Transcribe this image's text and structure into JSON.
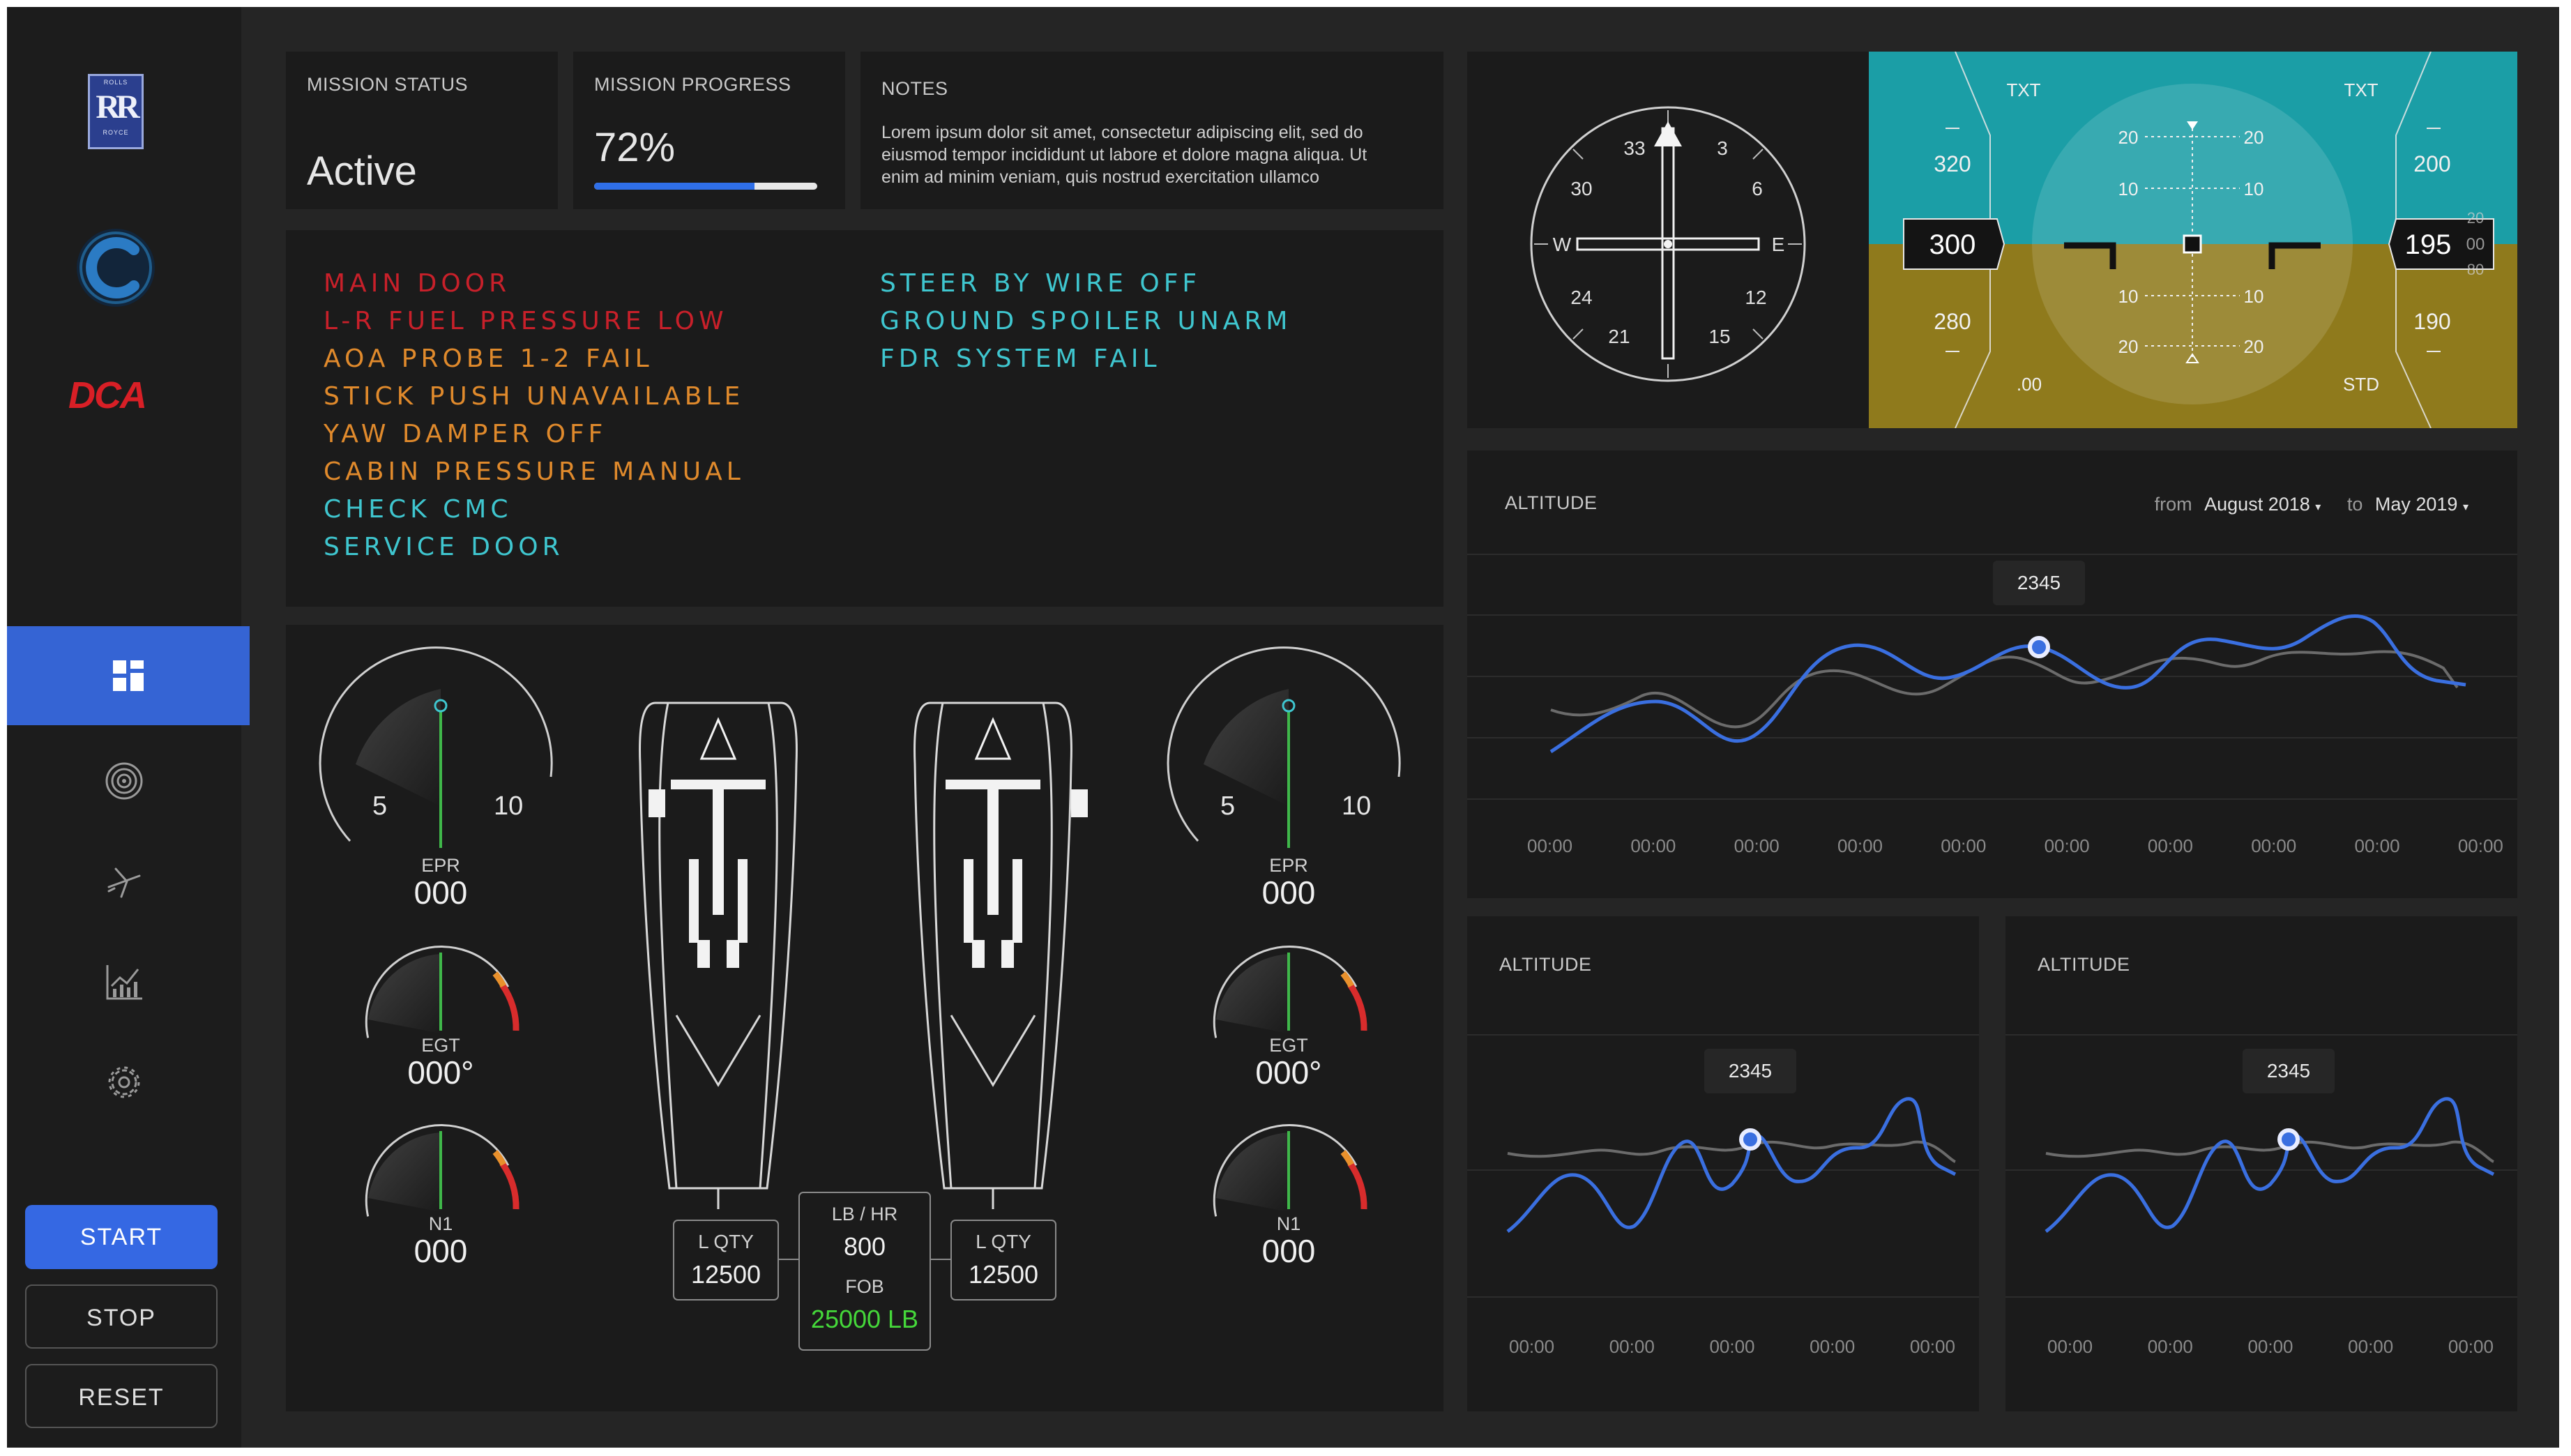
{
  "sidebar": {
    "logos": {
      "rr_top": "ROLLS",
      "rr_mid": "RR",
      "rr_bottom": "ROYCE",
      "dca": "DCA"
    },
    "nav": [
      {
        "icon": "dashboard-icon",
        "active": true
      },
      {
        "icon": "engine-icon",
        "active": false
      },
      {
        "icon": "aircraft-icon",
        "active": false
      },
      {
        "icon": "analytics-icon",
        "active": false
      },
      {
        "icon": "settings-icon",
        "active": false
      }
    ],
    "buttons": {
      "start": "START",
      "stop": "STOP",
      "reset": "RESET"
    }
  },
  "status": {
    "mission_status_label": "MISSION STATUS",
    "mission_status_value": "Active",
    "mission_progress_label": "MISSION PROGRESS",
    "mission_progress_value": "72%",
    "mission_progress_fraction": 0.72,
    "notes_label": "NOTES",
    "notes_line1": "Lorem ipsum dolor sit amet, consectetur adipiscing elit, sed do",
    "notes_line2": "eiusmod tempor incididunt ut labore et dolore magna aliqua. Ut",
    "notes_line3": "enim ad minim veniam, quis nostrud exercitation ullamco"
  },
  "alerts": {
    "left": [
      {
        "text": "MAIN DOOR",
        "color": "#c8202a"
      },
      {
        "text": "L-R FUEL PRESSURE LOW",
        "color": "#c8202a"
      },
      {
        "text": "AOA PROBE 1-2 FAIL",
        "color": "#e08a2c"
      },
      {
        "text": "STICK PUSH UNAVAILABLE",
        "color": "#e08a2c"
      },
      {
        "text": "YAW DAMPER OFF",
        "color": "#e08a2c"
      },
      {
        "text": "CABIN PRESSURE MANUAL",
        "color": "#e08a2c"
      },
      {
        "text": "CHECK CMC",
        "color": "#3fc6cf"
      },
      {
        "text": "SERVICE  DOOR",
        "color": "#3fc6cf"
      }
    ],
    "right": [
      {
        "text": "STEER BY WIRE OFF",
        "color": "#3fc6cf"
      },
      {
        "text": "GROUND SPOILER UNARM",
        "color": "#3fc6cf"
      },
      {
        "text": "FDR SYSTEM FAIL",
        "color": "#3fc6cf"
      }
    ]
  },
  "engines": {
    "left": {
      "epr": {
        "label": "EPR",
        "value": "000",
        "min_label": "5",
        "max_label": "10"
      },
      "egt": {
        "label": "EGT",
        "value": "000°"
      },
      "n1": {
        "label": "N1",
        "value": "000"
      }
    },
    "right": {
      "epr": {
        "label": "EPR",
        "value": "000",
        "min_label": "5",
        "max_label": "10"
      },
      "egt": {
        "label": "EGT",
        "value": "000°"
      },
      "n1": {
        "label": "N1",
        "value": "000"
      }
    },
    "fuel": {
      "left_label": "L QTY",
      "left_value": "12500",
      "right_label": "L QTY",
      "right_value": "12500",
      "flow_label": "LB / HR",
      "flow_value": "800",
      "fob_label": "FOB",
      "fob_value": "25000 LB"
    }
  },
  "compass": {
    "marks": [
      "33",
      "3",
      "30",
      "6",
      "W",
      "E",
      "24",
      "12",
      "21",
      "15"
    ]
  },
  "pfd": {
    "txt_left": "TXT",
    "txt_right": "TXT",
    "speed": {
      "upper": "320",
      "current": "300",
      "lower": "280",
      "bottom": ".00"
    },
    "alt": {
      "upper": "200",
      "current": "195",
      "lower": "190",
      "bottom": "STD",
      "tape_a": "20",
      "tape_b": "00",
      "tape_c": "80"
    },
    "pitch": {
      "p20": "20",
      "p10": "10"
    },
    "colors": {
      "sky": "#1b9ea6",
      "ground": "#8f7a1c"
    }
  },
  "chart_main": {
    "title": "ALTITUDE",
    "from_label": "from",
    "from_value": "August 2018",
    "to_label": "to",
    "to_value": "May 2019",
    "tooltip": "2345",
    "x_labels": [
      "00:00",
      "00:00",
      "00:00",
      "00:00",
      "00:00",
      "00:00",
      "00:00",
      "00:00",
      "00:00",
      "00:00"
    ]
  },
  "chart_small_a": {
    "title": "ALTITUDE",
    "tooltip": "2345",
    "x_labels": [
      "00:00",
      "00:00",
      "00:00",
      "00:00",
      "00:00"
    ]
  },
  "chart_small_b": {
    "title": "ALTITUDE",
    "tooltip": "2345",
    "x_labels": [
      "00:00",
      "00:00",
      "00:00",
      "00:00",
      "00:00"
    ]
  },
  "colors": {
    "accent": "#3a6fe0",
    "alert_red": "#c8202a",
    "alert_amber": "#e08a2c",
    "alert_cyan": "#3fc6cf",
    "fob_green": "#45d83a"
  }
}
